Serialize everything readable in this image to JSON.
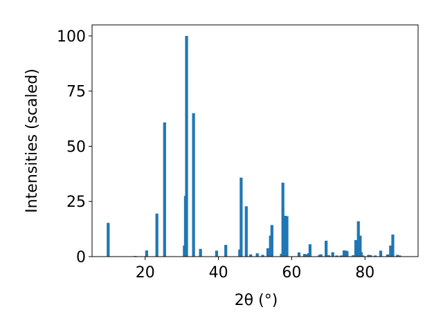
{
  "chart_data": {
    "type": "bar",
    "xlabel": "2θ (°)",
    "ylabel": "Intensities (scaled)",
    "xlim": [
      5.5,
      94.5
    ],
    "ylim": [
      0,
      105
    ],
    "xticks": [
      20,
      40,
      60,
      80
    ],
    "yticks": [
      0,
      25,
      50,
      75,
      100
    ],
    "bar_width_units": 0.8,
    "bar_color": "#1f77b4",
    "grid": false,
    "legend": "none",
    "x": [
      9.9,
      17.3,
      20.4,
      23.2,
      25.3,
      30.7,
      31.0,
      31.3,
      33.2,
      35.1,
      39.5,
      42.0,
      45.8,
      46.2,
      47.6,
      48.8,
      50.6,
      52.1,
      53.5,
      54.2,
      54.6,
      57.2,
      57.6,
      58.3,
      58.7,
      62.0,
      63.5,
      64.0,
      64.6,
      65.0,
      67.6,
      68.0,
      69.4,
      70.1,
      71.2,
      72.3,
      73.5,
      74.3,
      74.7,
      75.1,
      76.8,
      77.5,
      78.2,
      78.7,
      79.0,
      79.4,
      81.0,
      81.5,
      82.8,
      84.3,
      86.2,
      87.0,
      87.6,
      88.9,
      89.5
    ],
    "values": [
      15.3,
      0.3,
      2.8,
      19.5,
      60.8,
      5.0,
      27.5,
      100.0,
      65.0,
      3.5,
      2.7,
      5.3,
      3.2,
      35.8,
      22.8,
      1.0,
      1.5,
      0.8,
      3.8,
      9.5,
      14.3,
      1.3,
      33.5,
      18.5,
      18.3,
      1.9,
      1.2,
      1.0,
      1.5,
      5.6,
      0.8,
      1.0,
      7.2,
      0.6,
      2.0,
      0.5,
      0.5,
      2.8,
      2.7,
      2.5,
      0.6,
      7.5,
      16.0,
      9.5,
      2.0,
      0.5,
      0.8,
      0.7,
      0.5,
      2.7,
      1.0,
      5.0,
      10.0,
      0.8,
      0.5
    ]
  }
}
